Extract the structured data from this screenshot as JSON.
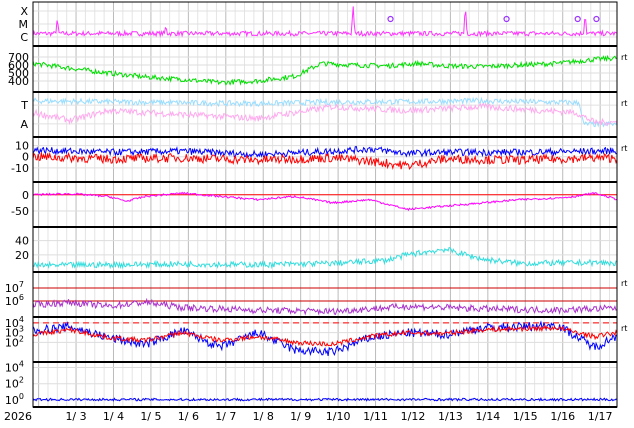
{
  "chart_data": {
    "type": "line",
    "x_start": "2026-01-02",
    "x_end": "2026-01-17",
    "year_label": "2026",
    "x_tick_labels": [
      "1/ 3",
      "1/ 4",
      "1/ 5",
      "1/ 6",
      "1/ 7",
      "1/ 8",
      "1/ 9",
      "1/10",
      "1/11",
      "1/12",
      "1/13",
      "1/14",
      "1/15",
      "1/16",
      "1/17"
    ],
    "grid": true,
    "panels": [
      {
        "id": "flare-class",
        "scale": "category",
        "y_tick_labels": [
          "X",
          "M",
          "C"
        ],
        "right_label": "",
        "series": [
          {
            "color": "#ff33ff",
            "shape": "baseline",
            "level": 0.25,
            "noise": 0.12,
            "spikes": [
              [
                0.5,
                0.7
              ],
              [
                3.4,
                0.5
              ],
              [
                8.4,
                1.0
              ],
              [
                11.4,
                1.0
              ],
              [
                14.6,
                0.8
              ],
              [
                16.4,
                1.0
              ],
              [
                16.9,
                1.0
              ]
            ]
          }
        ],
        "markers": [
          {
            "x": "2026-01-11.4",
            "color": "#9933ff"
          },
          {
            "x": "2026-01-14.5",
            "color": "#9933ff"
          },
          {
            "x": "2026-01-16.4",
            "color": "#9933ff"
          },
          {
            "x": "2026-01-16.9",
            "color": "#9933ff"
          }
        ]
      },
      {
        "id": "speed",
        "scale": "linear",
        "ylim": [
          300,
          800
        ],
        "y_ticks": [
          400,
          500,
          600,
          700
        ],
        "y_tick_labels": [
          "400",
          "500",
          "600",
          "700"
        ],
        "right_label": "rt",
        "series": [
          {
            "color": "#00dd00",
            "anchors": [
              [
                0,
                620
              ],
              [
                1,
                560
              ],
              [
                2,
                500
              ],
              [
                3,
                450
              ],
              [
                4,
                420
              ],
              [
                5,
                380
              ],
              [
                6,
                400
              ],
              [
                7,
                460
              ],
              [
                7.7,
                620
              ],
              [
                8.5,
                600
              ],
              [
                9.5,
                590
              ],
              [
                10.3,
                620
              ],
              [
                11,
                590
              ],
              [
                12,
                580
              ],
              [
                13,
                600
              ],
              [
                14,
                620
              ],
              [
                15,
                670
              ],
              [
                16,
                700
              ],
              [
                17,
                690
              ]
            ],
            "noise": 30
          }
        ]
      },
      {
        "id": "temperature",
        "scale": "category",
        "y_tick_labels": [
          "T",
          "A"
        ],
        "right_label": "rt",
        "series": [
          {
            "color": "#99ddff",
            "anchors": [
              [
                0,
                0.85
              ],
              [
                4,
                0.8
              ],
              [
                6,
                0.78
              ],
              [
                8,
                0.82
              ],
              [
                10,
                0.83
              ],
              [
                12,
                0.85
              ],
              [
                14.6,
                0.8
              ],
              [
                14.7,
                0.25
              ],
              [
                17,
                0.25
              ]
            ],
            "noise": 0.07
          },
          {
            "color": "#ffaaee",
            "anchors": [
              [
                0,
                0.55
              ],
              [
                1,
                0.35
              ],
              [
                2,
                0.6
              ],
              [
                4,
                0.5
              ],
              [
                6,
                0.4
              ],
              [
                8,
                0.7
              ],
              [
                10,
                0.6
              ],
              [
                12,
                0.7
              ],
              [
                14.5,
                0.55
              ],
              [
                15,
                0.3
              ],
              [
                17,
                0.3
              ]
            ],
            "noise": 0.08
          }
        ]
      },
      {
        "id": "imf",
        "scale": "linear",
        "ylim": [
          -20,
          15
        ],
        "y_ticks": [
          -10,
          0,
          10
        ],
        "y_tick_labels": [
          "-10",
          "0",
          "10"
        ],
        "right_label": "rt",
        "series": [
          {
            "color": "#0000ff",
            "anchors": [
              [
                0,
                6
              ],
              [
                2,
                4
              ],
              [
                4,
                5
              ],
              [
                6,
                2
              ],
              [
                8,
                5
              ],
              [
                9,
                7
              ],
              [
                10,
                3
              ],
              [
                11,
                4
              ],
              [
                13,
                4
              ],
              [
                15,
                5
              ],
              [
                17,
                6
              ]
            ],
            "noise": 3
          },
          {
            "color": "#ff0000",
            "anchors": [
              [
                0,
                0
              ],
              [
                2,
                -2
              ],
              [
                4,
                -1
              ],
              [
                6,
                -3
              ],
              [
                8,
                -1
              ],
              [
                9,
                -4
              ],
              [
                10,
                -8
              ],
              [
                11,
                -2
              ],
              [
                13,
                -3
              ],
              [
                15,
                -1
              ],
              [
                17,
                -2
              ]
            ],
            "noise": 4
          }
        ]
      },
      {
        "id": "dst",
        "scale": "linear",
        "ylim": [
          -90,
          30
        ],
        "y_ticks": [
          -50,
          0
        ],
        "y_tick_labels": [
          "-50",
          "0"
        ],
        "right_label": "",
        "reference_lines": [
          {
            "value": 0,
            "color": "#ff0000",
            "dash": "none"
          }
        ],
        "series": [
          {
            "color": "#ff00ff",
            "anchors": [
              [
                0,
                0
              ],
              [
                1,
                3
              ],
              [
                2,
                -5
              ],
              [
                2.5,
                -20
              ],
              [
                3,
                -5
              ],
              [
                4,
                5
              ],
              [
                5,
                -5
              ],
              [
                6,
                -15
              ],
              [
                7,
                -5
              ],
              [
                8,
                -25
              ],
              [
                9,
                -15
              ],
              [
                9.5,
                -30
              ],
              [
                10,
                -45
              ],
              [
                11,
                -35
              ],
              [
                12,
                -25
              ],
              [
                13,
                -15
              ],
              [
                14,
                -10
              ],
              [
                14.5,
                -5
              ],
              [
                15,
                5
              ],
              [
                15.8,
                -20
              ],
              [
                16,
                5
              ],
              [
                17,
                -5
              ]
            ],
            "noise": 3
          }
        ]
      },
      {
        "id": "density",
        "scale": "linear",
        "ylim": [
          0,
          55
        ],
        "y_ticks": [
          20,
          40
        ],
        "y_tick_labels": [
          "20",
          "40"
        ],
        "right_label": "",
        "series": [
          {
            "color": "#33dddd",
            "anchors": [
              [
                0,
                5
              ],
              [
                2,
                6
              ],
              [
                4,
                7
              ],
              [
                6,
                6
              ],
              [
                8,
                8
              ],
              [
                9.4,
                12
              ],
              [
                10,
                20
              ],
              [
                11,
                28
              ],
              [
                12,
                14
              ],
              [
                13,
                8
              ],
              [
                15,
                9
              ],
              [
                17,
                6
              ]
            ],
            "noise": 4
          }
        ]
      },
      {
        "id": "electron-flux",
        "scale": "log",
        "ylim": [
          5,
          8
        ],
        "y_ticks": [
          6,
          7
        ],
        "y_tick_labels": [
          "10^6",
          "10^7"
        ],
        "right_label": "rt",
        "reference_lines": [
          {
            "value": 7,
            "color": "#cc0000",
            "dash": "none"
          },
          {
            "value": 6,
            "color": "#cc0000",
            "dash": "none"
          }
        ],
        "series": [
          {
            "color": "#aa33cc",
            "anchors": [
              [
                0,
                5.7
              ],
              [
                1,
                5.9
              ],
              [
                2,
                5.6
              ],
              [
                3,
                5.9
              ],
              [
                4,
                5.5
              ],
              [
                6,
                5.3
              ],
              [
                8,
                5.2
              ],
              [
                10,
                5.6
              ],
              [
                12,
                5.4
              ],
              [
                14,
                5.3
              ],
              [
                16,
                5.5
              ],
              [
                17,
                5.6
              ]
            ],
            "noise": 0.25
          }
        ]
      },
      {
        "id": "proton-flux",
        "scale": "log",
        "ylim": [
          0.3,
          4.3
        ],
        "y_ticks": [
          2,
          3,
          4
        ],
        "y_tick_labels": [
          "10^2",
          "10^3",
          "10^4"
        ],
        "right_label": "rt",
        "reference_lines": [
          {
            "value": 4,
            "color": "#ff0000",
            "dash": "dashed"
          }
        ],
        "series": [
          {
            "color": "#0000ff",
            "anchors": [
              [
                0,
                3.2
              ],
              [
                1,
                3.6
              ],
              [
                2,
                2.5
              ],
              [
                3,
                1.8
              ],
              [
                4,
                3.2
              ],
              [
                5,
                1.5
              ],
              [
                6,
                3.0
              ],
              [
                7,
                1.2
              ],
              [
                8,
                1.0
              ],
              [
                9,
                2.5
              ],
              [
                10,
                3.0
              ],
              [
                11,
                2.8
              ],
              [
                12,
                3.5
              ],
              [
                13,
                3.6
              ],
              [
                14,
                3.8
              ],
              [
                15,
                1.5
              ],
              [
                16,
                3.5
              ],
              [
                17,
                3.3
              ]
            ],
            "noise": 0.45
          },
          {
            "color": "#ff0000",
            "anchors": [
              [
                0,
                2.8
              ],
              [
                1,
                3.3
              ],
              [
                2,
                2.5
              ],
              [
                3,
                2.2
              ],
              [
                4,
                3.0
              ],
              [
                5,
                2.2
              ],
              [
                6,
                2.6
              ],
              [
                7,
                2.0
              ],
              [
                8,
                1.8
              ],
              [
                9,
                2.6
              ],
              [
                10,
                3.0
              ],
              [
                11,
                2.9
              ],
              [
                12,
                3.3
              ],
              [
                13,
                3.4
              ],
              [
                14,
                3.5
              ],
              [
                15,
                2.6
              ],
              [
                16,
                3.3
              ],
              [
                17,
                3.0
              ]
            ],
            "noise": 0.25
          }
        ]
      },
      {
        "id": "proton-high",
        "scale": "log",
        "ylim": [
          -0.5,
          4.3
        ],
        "y_ticks": [
          0,
          2,
          4
        ],
        "y_tick_labels": [
          "10^0",
          "10^2",
          "10^4"
        ],
        "right_label": "",
        "series": [
          {
            "color": "#0000ff",
            "anchors": [
              [
                0,
                0.05
              ],
              [
                17,
                0.05
              ]
            ],
            "noise": 0.15
          }
        ]
      }
    ]
  }
}
